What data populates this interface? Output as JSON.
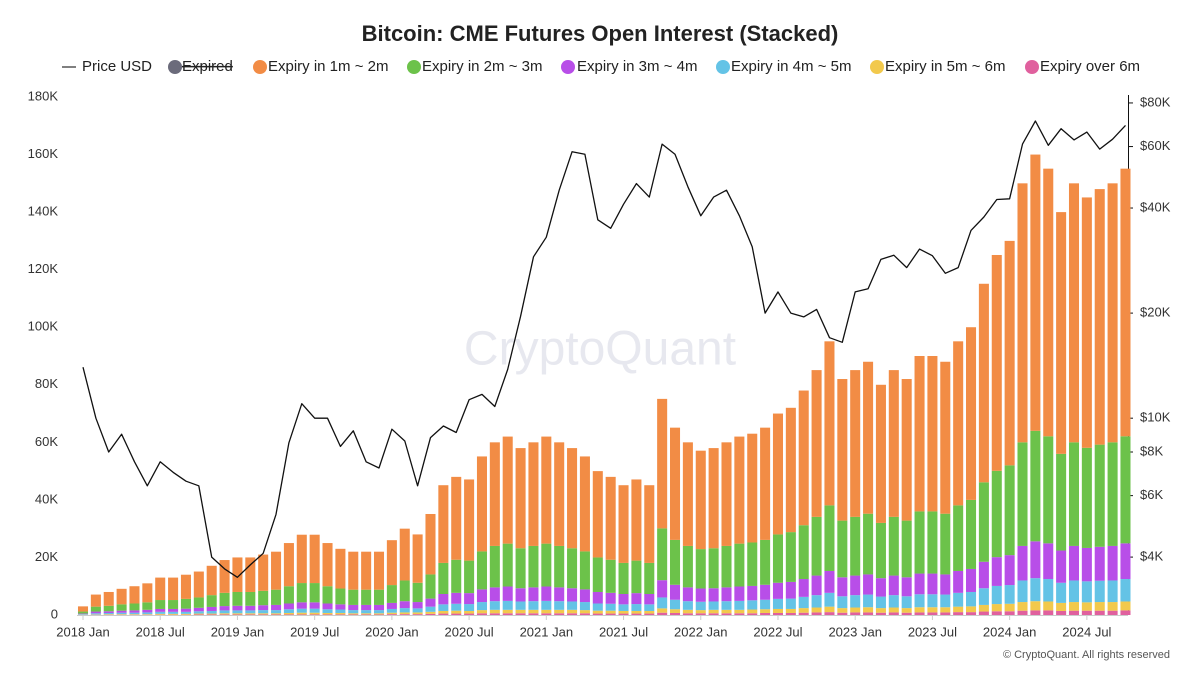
{
  "chart_data": {
    "type": "bar",
    "stacked": true,
    "title": "Bitcoin: CME Futures Open Interest (Stacked)",
    "watermark": "CryptoQuant",
    "footer": "© CryptoQuant. All rights reserved",
    "x": [
      "2018-01",
      "2018-02",
      "2018-03",
      "2018-04",
      "2018-05",
      "2018-06",
      "2018-07",
      "2018-08",
      "2018-09",
      "2018-10",
      "2018-11",
      "2018-12",
      "2019-01",
      "2019-02",
      "2019-03",
      "2019-04",
      "2019-05",
      "2019-06",
      "2019-07",
      "2019-08",
      "2019-09",
      "2019-10",
      "2019-11",
      "2019-12",
      "2020-01",
      "2020-02",
      "2020-03",
      "2020-04",
      "2020-05",
      "2020-06",
      "2020-07",
      "2020-08",
      "2020-09",
      "2020-10",
      "2020-11",
      "2020-12",
      "2021-01",
      "2021-02",
      "2021-03",
      "2021-04",
      "2021-05",
      "2021-06",
      "2021-07",
      "2021-08",
      "2021-09",
      "2021-10",
      "2021-11",
      "2021-12",
      "2022-01",
      "2022-02",
      "2022-03",
      "2022-04",
      "2022-05",
      "2022-06",
      "2022-07",
      "2022-08",
      "2022-09",
      "2022-10",
      "2022-11",
      "2022-12",
      "2023-01",
      "2023-02",
      "2023-03",
      "2023-04",
      "2023-05",
      "2023-06",
      "2023-07",
      "2023-08",
      "2023-09",
      "2023-10",
      "2023-11",
      "2023-12",
      "2024-01",
      "2024-02",
      "2024-03",
      "2024-04",
      "2024-05",
      "2024-06",
      "2024-07",
      "2024-08",
      "2024-09",
      "2024-10"
    ],
    "xticks": [
      {
        "value": "2018-01",
        "label": "2018 Jan"
      },
      {
        "value": "2018-07",
        "label": "2018 Jul"
      },
      {
        "value": "2019-01",
        "label": "2019 Jan"
      },
      {
        "value": "2019-07",
        "label": "2019 Jul"
      },
      {
        "value": "2020-01",
        "label": "2020 Jan"
      },
      {
        "value": "2020-07",
        "label": "2020 Jul"
      },
      {
        "value": "2021-01",
        "label": "2021 Jan"
      },
      {
        "value": "2021-07",
        "label": "2021 Jul"
      },
      {
        "value": "2022-01",
        "label": "2022 Jan"
      },
      {
        "value": "2022-07",
        "label": "2022 Jul"
      },
      {
        "value": "2023-01",
        "label": "2023 Jan"
      },
      {
        "value": "2023-07",
        "label": "2023 Jul"
      },
      {
        "value": "2024-01",
        "label": "2024 Jan"
      },
      {
        "value": "2024-07",
        "label": "2024 Jul"
      }
    ],
    "ylim": [
      0,
      180
    ],
    "yticks": [
      0,
      {
        "value": 20,
        "label": "20K"
      },
      {
        "value": 40,
        "label": "40K"
      },
      {
        "value": 60,
        "label": "60K"
      },
      {
        "value": 80,
        "label": "80K"
      },
      {
        "value": 100,
        "label": "100K"
      },
      {
        "value": 120,
        "label": "120K"
      },
      {
        "value": 140,
        "label": "140K"
      },
      {
        "value": 160,
        "label": "160K"
      },
      {
        "value": 180,
        "label": "180K"
      }
    ],
    "y2lim": [
      2730,
      83200
    ],
    "y2log": true,
    "y2ticks": [
      {
        "value": 4000,
        "label": "$4K"
      },
      {
        "value": 6000,
        "label": "$6K"
      },
      {
        "value": 8000,
        "label": "$8K"
      },
      {
        "value": 10000,
        "label": "$10K"
      },
      {
        "value": 20000,
        "label": "$20K"
      },
      {
        "value": 40000,
        "label": "$40K"
      },
      {
        "value": 60000,
        "label": "$60K"
      },
      {
        "value": 80000,
        "label": "$80K"
      }
    ],
    "series": [
      {
        "name": "Price USD",
        "color": "#111111",
        "axis": "y2",
        "mark": "line",
        "values": [
          14000,
          10000,
          8000,
          9000,
          7500,
          6400,
          7500,
          7000,
          6600,
          6400,
          4000,
          3700,
          3500,
          3800,
          4100,
          5300,
          8500,
          11000,
          10000,
          10000,
          8300,
          9200,
          7500,
          7200,
          9300,
          8600,
          6400,
          8800,
          9500,
          9100,
          11300,
          11700,
          10800,
          13800,
          19600,
          29000,
          33000,
          45000,
          58000,
          57000,
          37000,
          35000,
          41000,
          47000,
          43000,
          61000,
          57000,
          46000,
          38000,
          43000,
          45000,
          38000,
          31000,
          20000,
          23000,
          20000,
          19500,
          20500,
          17000,
          16500,
          23000,
          23500,
          28500,
          29300,
          27000,
          30500,
          29200,
          26000,
          27000,
          34500,
          37700,
          42300,
          42500,
          61000,
          71000,
          60500,
          67500,
          62700,
          66000,
          59000,
          63000,
          69000
        ]
      },
      {
        "name": "Expired",
        "color": "#6b6b7b",
        "hidden": true
      },
      {
        "name": "Expiry in 1m ~ 2m",
        "color": "#f28c45",
        "values": [
          1.8,
          4.2,
          4.8,
          5.4,
          6,
          6.6,
          7.8,
          7.8,
          8.4,
          9,
          10.2,
          11.4,
          12,
          12,
          12.6,
          13.2,
          15,
          16.8,
          16.8,
          15,
          13.8,
          13.2,
          13.2,
          13.2,
          15.6,
          18,
          16.8,
          21,
          27,
          28.8,
          28.2,
          33,
          36,
          37.2,
          34.8,
          36,
          37.2,
          36,
          34.8,
          33,
          30,
          28.8,
          27,
          28.2,
          27,
          45,
          39,
          36,
          34.2,
          34.8,
          36,
          37.2,
          37.8,
          39,
          42,
          43.2,
          46.8,
          51,
          57,
          49.2,
          51,
          52.8,
          48,
          51,
          49.2,
          54,
          54,
          52.8,
          57,
          60,
          69,
          75,
          78,
          90,
          96,
          93,
          84,
          90,
          87,
          88.8,
          90,
          93
        ]
      },
      {
        "name": "Expiry in 2m ~ 3m",
        "color": "#6cc24a",
        "values": [
          0.7,
          1.7,
          1.9,
          2.2,
          2.4,
          2.6,
          3.1,
          3.1,
          3.4,
          3.6,
          4.1,
          4.6,
          4.8,
          4.8,
          5,
          5.3,
          6,
          6.7,
          6.7,
          6,
          5.5,
          5.3,
          5.3,
          5.3,
          6.2,
          7.2,
          6.7,
          8.4,
          10.8,
          11.5,
          11.3,
          13.2,
          14.4,
          14.9,
          13.9,
          14.4,
          14.9,
          14.4,
          13.9,
          13.2,
          12,
          11.5,
          10.8,
          11.3,
          10.8,
          18,
          15.6,
          14.4,
          13.7,
          13.9,
          14.4,
          14.9,
          15.1,
          15.6,
          16.8,
          17.3,
          18.7,
          20.4,
          22.8,
          19.7,
          20.4,
          21.1,
          19.2,
          20.4,
          19.7,
          21.6,
          21.6,
          21.1,
          22.8,
          24,
          27.6,
          30,
          31.2,
          36,
          38.4,
          37.2,
          33.6,
          36,
          34.8,
          35.5,
          36,
          37.2
        ]
      },
      {
        "name": "Expiry in 3m ~ 4m",
        "color": "#b84ee8",
        "values": [
          0.2,
          0.6,
          0.6,
          0.7,
          0.8,
          0.9,
          1,
          1,
          1.1,
          1.2,
          1.4,
          1.5,
          1.6,
          1.6,
          1.7,
          1.8,
          2,
          2.2,
          2.2,
          2,
          1.8,
          1.8,
          1.8,
          1.8,
          2.1,
          2.4,
          2.2,
          2.8,
          3.6,
          3.8,
          3.8,
          4.4,
          4.8,
          5,
          4.6,
          4.8,
          5,
          4.8,
          4.6,
          4.4,
          4,
          3.8,
          3.6,
          3.8,
          3.6,
          6,
          5.2,
          4.8,
          4.6,
          4.6,
          4.8,
          5,
          5,
          5.2,
          5.6,
          5.8,
          6.2,
          6.8,
          7.6,
          6.6,
          6.8,
          7,
          6.4,
          6.8,
          6.6,
          7.2,
          7.2,
          7,
          7.6,
          8,
          9.2,
          10,
          10.4,
          12,
          12.8,
          12.4,
          11.2,
          12,
          11.6,
          11.8,
          12,
          12.4
        ]
      },
      {
        "name": "Expiry in 4m ~ 5m",
        "color": "#64c3e6",
        "values": [
          0.2,
          0.4,
          0.4,
          0.5,
          0.5,
          0.6,
          0.7,
          0.7,
          0.7,
          0.8,
          0.9,
          1,
          1,
          1,
          1.1,
          1.1,
          1.3,
          1.4,
          1.4,
          1.3,
          1.2,
          1.1,
          1.1,
          1.1,
          1.3,
          1.5,
          1.4,
          1.8,
          2.3,
          2.4,
          2.4,
          2.8,
          3,
          3.1,
          2.9,
          3,
          3.1,
          3,
          2.9,
          2.8,
          2.5,
          2.4,
          2.3,
          2.4,
          2.3,
          3.8,
          3.3,
          3,
          2.9,
          2.9,
          3,
          3.1,
          3.2,
          3.3,
          3.5,
          3.6,
          3.9,
          4.3,
          4.8,
          4.1,
          4.3,
          4.4,
          4,
          4.3,
          4.1,
          4.5,
          4.5,
          4.4,
          4.8,
          5,
          5.8,
          6.3,
          6.5,
          7.5,
          8,
          7.8,
          7,
          7.5,
          7.3,
          7.4,
          7.5,
          7.8
        ]
      },
      {
        "name": "Expiry in 5m ~ 6m",
        "color": "#f2c94c",
        "values": [
          0.1,
          0.1,
          0.2,
          0.2,
          0.2,
          0.2,
          0.3,
          0.3,
          0.3,
          0.3,
          0.3,
          0.4,
          0.4,
          0.4,
          0.4,
          0.4,
          0.5,
          0.6,
          0.6,
          0.5,
          0.5,
          0.4,
          0.4,
          0.4,
          0.5,
          0.6,
          0.6,
          0.7,
          0.9,
          1,
          0.9,
          1.1,
          1.2,
          1.2,
          1.2,
          1.2,
          1.2,
          1.2,
          1.2,
          1.1,
          1,
          1,
          0.9,
          0.9,
          0.9,
          1.5,
          1.3,
          1.2,
          1.1,
          1.2,
          1.2,
          1.2,
          1.3,
          1.3,
          1.4,
          1.4,
          1.6,
          1.7,
          1.9,
          1.6,
          1.7,
          1.8,
          1.6,
          1.7,
          1.6,
          1.8,
          1.8,
          1.8,
          1.9,
          2,
          2.3,
          2.5,
          2.6,
          3,
          3.2,
          3.1,
          2.8,
          3,
          2.9,
          3,
          3,
          3.1
        ]
      },
      {
        "name": "Expiry over 6m",
        "color": "#e0609e",
        "values": [
          0,
          0.1,
          0.1,
          0.1,
          0.1,
          0.1,
          0.1,
          0.1,
          0.1,
          0.2,
          0.2,
          0.2,
          0.2,
          0.2,
          0.2,
          0.2,
          0.2,
          0.2,
          0.2,
          0.2,
          0.2,
          0.2,
          0.2,
          0.2,
          0.3,
          0.3,
          0.3,
          0.4,
          0.5,
          0.5,
          0.5,
          0.6,
          0.6,
          0.6,
          0.6,
          0.6,
          0.6,
          0.6,
          0.6,
          0.6,
          0.5,
          0.5,
          0.5,
          0.5,
          0.5,
          0.8,
          0.7,
          0.6,
          0.6,
          0.6,
          0.6,
          0.6,
          0.6,
          0.7,
          0.7,
          0.7,
          0.8,
          0.9,
          1,
          0.8,
          0.9,
          0.9,
          0.8,
          0.9,
          0.8,
          0.9,
          0.9,
          0.9,
          1,
          1,
          1.2,
          1.3,
          1.3,
          1.5,
          1.6,
          1.6,
          1.4,
          1.5,
          1.5,
          1.5,
          1.5,
          1.6
        ]
      }
    ],
    "grid": false
  }
}
